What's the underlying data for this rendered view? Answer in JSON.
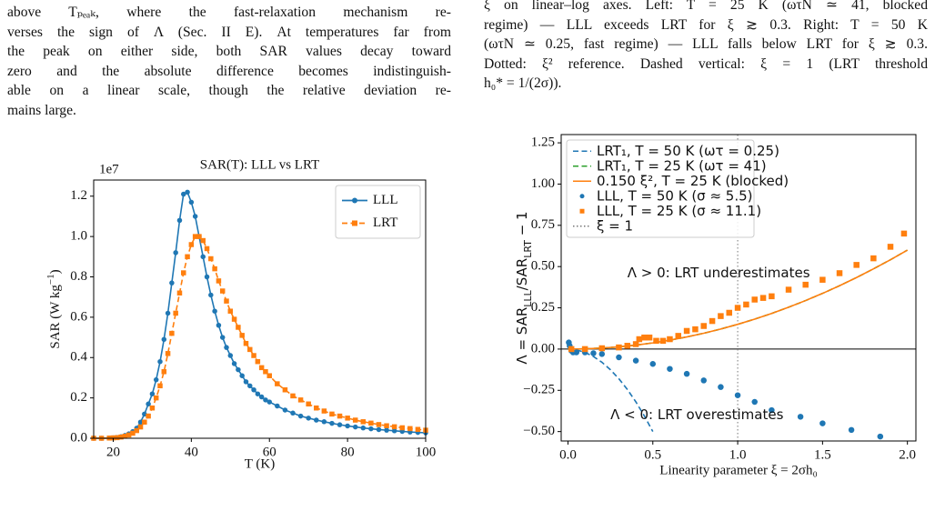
{
  "text": {
    "left_lines": [
      "above Tₚₑₐₖ, where the fast-relaxation mechanism re-",
      "verses the sign of Λ (Sec. II E). At temperatures far from",
      "the peak on either side, both SAR values decay toward",
      "zero and the absolute difference becomes indistinguish-",
      "able on a linear scale, though the relative deviation re-",
      "mains large."
    ],
    "right_lines": [
      "ξ on linear–log axes. Left: T = 25 K (ωτN ≃ 41, blocked",
      "regime) — LLL exceeds LRT for ξ ≳ 0.3. Right: T = 50 K",
      "(ωτN ≃ 0.25, fast regime) — LLL falls below LRT for ξ ≳ 0.3.",
      "Dotted: ξ² reference. Dashed vertical: ξ = 1 (LRT threshold",
      "h₀* = 1/(2σ))."
    ]
  },
  "chart_data": [
    {
      "type": "line",
      "title": "SAR(T): LLL vs LRT",
      "offset_label": "1e7",
      "xlabel": "T (K)",
      "ylabel_parts": [
        "SAR (W kg",
        "−1",
        ")"
      ],
      "legend": "upper right",
      "xlim": [
        15,
        100
      ],
      "ylim": [
        0,
        1.28
      ],
      "xticks": [
        20,
        40,
        60,
        80,
        100
      ],
      "yticks": [
        {
          "value": 0,
          "label": "0.0"
        },
        {
          "value": 0.2,
          "label": "0.2"
        },
        {
          "value": 0.4,
          "label": "0.4"
        },
        {
          "value": 0.6,
          "label": "0.6"
        },
        {
          "value": 0.8,
          "label": "0.8"
        },
        {
          "value": 1.0,
          "label": "1.0"
        },
        {
          "value": 1.2,
          "label": "1.2"
        }
      ],
      "x": [
        15,
        17,
        19,
        20,
        21,
        22,
        23,
        24,
        25,
        26,
        27,
        28,
        29,
        30,
        31,
        32,
        33,
        34,
        35,
        36,
        37,
        38,
        39,
        40,
        41,
        42,
        43,
        44,
        45,
        46,
        47,
        48,
        49,
        50,
        51,
        52,
        53,
        54,
        55,
        56,
        57,
        58,
        59,
        60,
        62,
        64,
        66,
        68,
        70,
        72,
        74,
        76,
        78,
        80,
        82,
        84,
        86,
        88,
        90,
        92,
        94,
        96,
        98,
        100
      ],
      "series": [
        {
          "name": "LLL",
          "color": "#1f77b4",
          "linestyle": "solid",
          "marker": "circle",
          "values": [
            0,
            0,
            0.001,
            0.002,
            0.004,
            0.008,
            0.014,
            0.022,
            0.033,
            0.05,
            0.08,
            0.12,
            0.17,
            0.22,
            0.29,
            0.38,
            0.49,
            0.62,
            0.77,
            0.92,
            1.08,
            1.21,
            1.22,
            1.17,
            1.1,
            1.0,
            0.9,
            0.8,
            0.71,
            0.63,
            0.56,
            0.5,
            0.45,
            0.41,
            0.37,
            0.34,
            0.31,
            0.28,
            0.26,
            0.24,
            0.22,
            0.205,
            0.19,
            0.18,
            0.16,
            0.14,
            0.125,
            0.11,
            0.1,
            0.09,
            0.082,
            0.074,
            0.067,
            0.061,
            0.056,
            0.051,
            0.047,
            0.043,
            0.04,
            0.037,
            0.034,
            0.031,
            0.029,
            0.027
          ]
        },
        {
          "name": "LRT",
          "color": "#ff7f0e",
          "linestyle": "dashed",
          "marker": "square",
          "values": [
            0,
            0,
            0.001,
            0.002,
            0.003,
            0.006,
            0.01,
            0.016,
            0.025,
            0.038,
            0.056,
            0.08,
            0.11,
            0.15,
            0.2,
            0.26,
            0.33,
            0.42,
            0.52,
            0.62,
            0.72,
            0.82,
            0.9,
            0.96,
            1.0,
            1.0,
            0.98,
            0.94,
            0.89,
            0.84,
            0.78,
            0.73,
            0.68,
            0.63,
            0.59,
            0.55,
            0.51,
            0.47,
            0.44,
            0.41,
            0.38,
            0.35,
            0.33,
            0.31,
            0.27,
            0.24,
            0.21,
            0.19,
            0.17,
            0.15,
            0.135,
            0.12,
            0.11,
            0.1,
            0.09,
            0.082,
            0.075,
            0.068,
            0.062,
            0.057,
            0.052,
            0.048,
            0.044,
            0.04
          ]
        }
      ]
    },
    {
      "type": "line",
      "xlabel": "Linearity parameter ξ = 2σh₀",
      "ylabel_parts": [
        "Λ = SAR",
        "LLL",
        "/SAR",
        "LRT",
        " − 1"
      ],
      "legend": "upper left",
      "xlim": [
        -0.04,
        2.05
      ],
      "ylim": [
        -0.557,
        1.3
      ],
      "xticks": [
        {
          "value": 0,
          "label": "0.0"
        },
        {
          "value": 0.5,
          "label": "0.5"
        },
        {
          "value": 1,
          "label": "1.0"
        },
        {
          "value": 1.5,
          "label": "1.5"
        },
        {
          "value": 2,
          "label": "2.0"
        }
      ],
      "yticks": [
        {
          "value": -0.5,
          "label": "−0.50"
        },
        {
          "value": -0.25,
          "label": "−0.25"
        },
        {
          "value": 0,
          "label": "0.00"
        },
        {
          "value": 0.25,
          "label": "0.25"
        },
        {
          "value": 0.5,
          "label": "0.50"
        },
        {
          "value": 0.75,
          "label": "0.75"
        },
        {
          "value": 1,
          "label": "1.00"
        },
        {
          "value": 1.25,
          "label": "1.25"
        }
      ],
      "hline": 0,
      "series": [
        {
          "name": "LRT₁, T = 50 K (ωτ = 0.25)",
          "color": "#1f77b4",
          "linestyle": "dashed",
          "marker": "none",
          "x": [
            0,
            0.05,
            0.1,
            0.15,
            0.2,
            0.25,
            0.3,
            0.35,
            0.4,
            0.45,
            0.5
          ],
          "values": [
            0,
            -0.005,
            -0.02,
            -0.045,
            -0.08,
            -0.125,
            -0.18,
            -0.245,
            -0.32,
            -0.405,
            -0.5
          ]
        },
        {
          "name": "LRT₁, T = 25 K (ωτ = 41)",
          "color": "#2ca02c",
          "linestyle": "dashed",
          "marker": "none",
          "x": [
            0,
            0.1,
            0.2,
            0.3,
            0.4,
            0.5,
            0.6,
            0.7,
            0.8,
            0.9,
            1,
            1.1,
            1.2,
            1.3,
            1.4,
            1.5,
            1.6,
            1.7,
            1.8,
            1.9,
            2
          ],
          "values": [
            0,
            0.0015,
            0.006,
            0.0135,
            0.024,
            0.0375,
            0.054,
            0.0735,
            0.096,
            0.1215,
            0.15,
            0.1815,
            0.216,
            0.2535,
            0.294,
            0.3375,
            0.384,
            0.4335,
            0.486,
            0.5415,
            0.6
          ]
        },
        {
          "name": "0.150 ξ², T = 25 K (blocked)",
          "color": "#ff7f0e",
          "linestyle": "solid",
          "marker": "none",
          "x": [
            0,
            0.1,
            0.2,
            0.3,
            0.4,
            0.5,
            0.6,
            0.7,
            0.8,
            0.9,
            1,
            1.1,
            1.2,
            1.3,
            1.4,
            1.5,
            1.6,
            1.7,
            1.8,
            1.9,
            2
          ],
          "values": [
            0,
            0.0015,
            0.006,
            0.0135,
            0.024,
            0.0375,
            0.054,
            0.0735,
            0.096,
            0.1215,
            0.15,
            0.1815,
            0.216,
            0.2535,
            0.294,
            0.3375,
            0.384,
            0.4335,
            0.486,
            0.5415,
            0.6
          ]
        },
        {
          "name": "LLL, T = 50 K (σ ≈ 5.5)",
          "color": "#1f77b4",
          "linestyle": "none",
          "marker": "circle",
          "x": [
            0.005,
            0.01,
            0.02,
            0.03,
            0.05,
            0.1,
            0.15,
            0.2,
            0.3,
            0.4,
            0.5,
            0.6,
            0.7,
            0.8,
            0.9,
            1.0,
            1.1,
            1.2,
            1.37,
            1.5,
            1.67,
            1.84
          ],
          "values": [
            0.04,
            0.02,
            -0.01,
            -0.02,
            -0.02,
            -0.02,
            -0.025,
            -0.03,
            -0.05,
            -0.07,
            -0.09,
            -0.12,
            -0.15,
            -0.19,
            -0.23,
            -0.28,
            -0.32,
            -0.37,
            -0.41,
            -0.45,
            -0.49,
            -0.53
          ]
        },
        {
          "name": "LLL, T = 25 K (σ ≈ 11.1)",
          "color": "#ff7f0e",
          "linestyle": "none",
          "marker": "square",
          "x": [
            0.02,
            0.1,
            0.2,
            0.3,
            0.35,
            0.4,
            0.42,
            0.45,
            0.48,
            0.52,
            0.56,
            0.6,
            0.65,
            0.7,
            0.75,
            0.8,
            0.85,
            0.9,
            0.95,
            1.0,
            1.05,
            1.1,
            1.15,
            1.2,
            1.3,
            1.4,
            1.5,
            1.6,
            1.7,
            1.8,
            1.9,
            1.98
          ],
          "values": [
            0,
            0,
            0.005,
            0.01,
            0.02,
            0.03,
            0.06,
            0.07,
            0.07,
            0.05,
            0.05,
            0.06,
            0.08,
            0.11,
            0.12,
            0.14,
            0.17,
            0.2,
            0.22,
            0.25,
            0.27,
            0.3,
            0.31,
            0.32,
            0.36,
            0.39,
            0.42,
            0.46,
            0.51,
            0.55,
            0.62,
            0.7
          ]
        }
      ],
      "reference_lines": [
        {
          "name": "ξ = 1",
          "x": 1,
          "color": "#777777",
          "linestyle": "dotted"
        }
      ],
      "annotations": [
        {
          "text": "Λ > 0: LRT underestimates",
          "x": 0.35,
          "y": 0.46,
          "color": "#ff7f0e"
        },
        {
          "text": "Λ < 0: LRT overestimates",
          "x": 0.25,
          "y": -0.4,
          "color": "#1f77b4"
        }
      ]
    }
  ]
}
